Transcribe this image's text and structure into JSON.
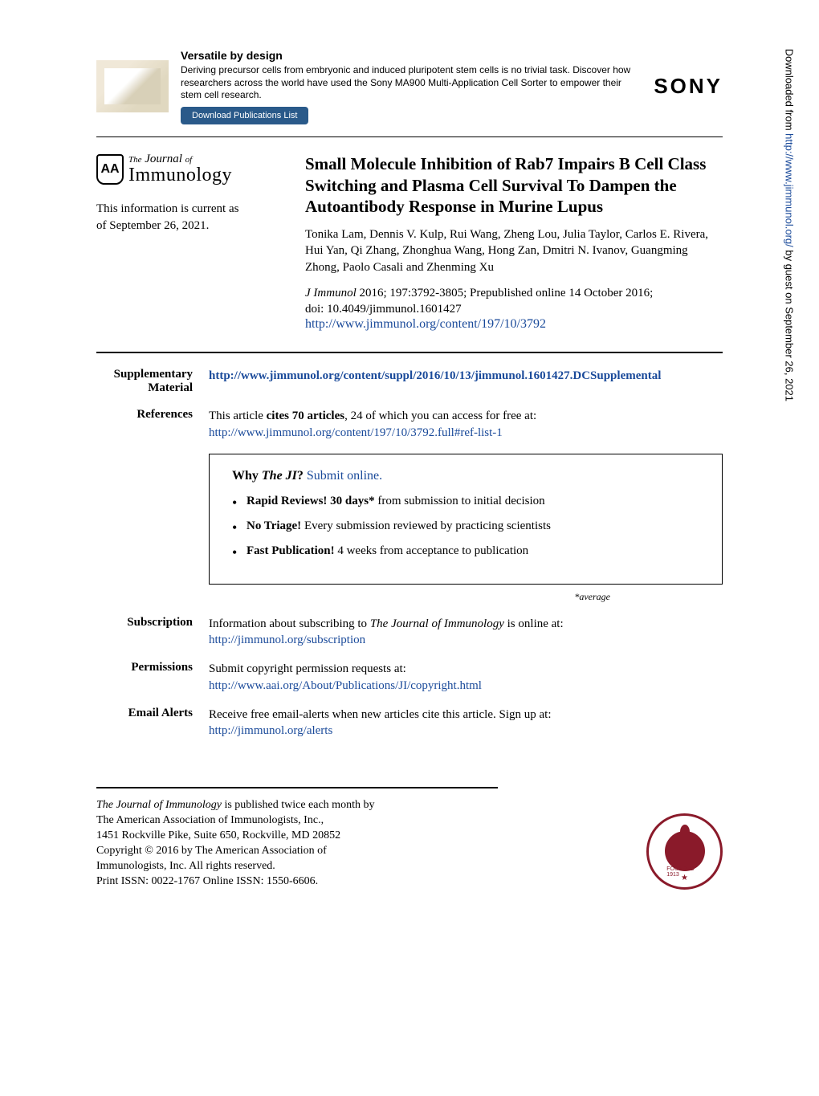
{
  "ad": {
    "title": "Versatile by design",
    "body": "Deriving precursor cells from embryonic and induced pluripotent stem cells is no trivial task. Discover how researchers across the world have used the Sony MA900 Multi-Application Cell Sorter to empower their stem cell research.",
    "button": "Download Publications List",
    "brand": "SONY"
  },
  "journal": {
    "shield": "AA",
    "the": "The",
    "top": "Journal",
    "of": "of",
    "bottom": "Immunology"
  },
  "current": {
    "line1": "This information is current as",
    "line2": "of September 26, 2021."
  },
  "article": {
    "title": "Small Molecule Inhibition of Rab7 Impairs B Cell Class Switching and Plasma Cell Survival To Dampen the Autoantibody Response in Murine Lupus",
    "authors": "Tonika Lam, Dennis V. Kulp, Rui Wang, Zheng Lou, Julia Taylor, Carlos E. Rivera, Hui Yan, Qi Zhang, Zhonghua Wang, Hong Zan, Dmitri N. Ivanov, Guangming Zhong, Paolo Casali and Zhenming Xu",
    "citation_journal": "J Immunol",
    "citation_rest": " 2016; 197:3792-3805; Prepublished online 14 October 2016;",
    "doi": "doi: 10.4049/jimmunol.1601427",
    "url": "http://www.jimmunol.org/content/197/10/3792"
  },
  "supplementary": {
    "label": "Supplementary Material",
    "url": "http://www.jimmunol.org/content/suppl/2016/10/13/jimmunol.1601427.DCSupplemental"
  },
  "references": {
    "label": "References",
    "text_pre": "This article ",
    "text_bold": "cites 70 articles",
    "text_post": ", 24 of which you can access for free at:",
    "url": "http://www.jimmunol.org/content/197/10/3792.full#ref-list-1"
  },
  "why": {
    "title_pre": "Why ",
    "title_em": "The JI",
    "title_q": "? ",
    "submit": "Submit online.",
    "b1_bold": "Rapid Reviews! 30 days*",
    "b1_rest": " from submission to initial decision",
    "b2_bold": "No Triage!",
    "b2_rest": " Every submission reviewed by practicing scientists",
    "b3_bold": "Fast Publication!",
    "b3_rest": " 4 weeks from acceptance to publication",
    "average": "*average"
  },
  "subscription": {
    "label": "Subscription",
    "text_pre": "Information about subscribing to ",
    "text_em": "The Journal of Immunology",
    "text_post": " is online at:",
    "url": "http://jimmunol.org/subscription"
  },
  "permissions": {
    "label": "Permissions",
    "text": "Submit copyright permission requests at:",
    "url": "http://www.aai.org/About/Publications/JI/copyright.html"
  },
  "alerts": {
    "label": "Email Alerts",
    "text": "Receive free email-alerts when new articles cite this article. Sign up at:",
    "url": "http://jimmunol.org/alerts"
  },
  "footer": {
    "l1_em": "The Journal of Immunology",
    "l1_rest": " is published twice each month by",
    "l2": "The American Association of Immunologists, Inc.,",
    "l3": "1451 Rockville Pike, Suite 650, Rockville, MD 20852",
    "l4": "Copyright © 2016 by The American Association of",
    "l5": "Immunologists, Inc. All rights reserved.",
    "l6": "Print ISSN: 0022-1767 Online ISSN: 1550-6606.",
    "seal_year": "FOUNDED 1913"
  },
  "sidebar": {
    "text_pre": "Downloaded from ",
    "url": "http://www.jimmunol.org/",
    "text_post": " by guest on September 26, 2021"
  }
}
